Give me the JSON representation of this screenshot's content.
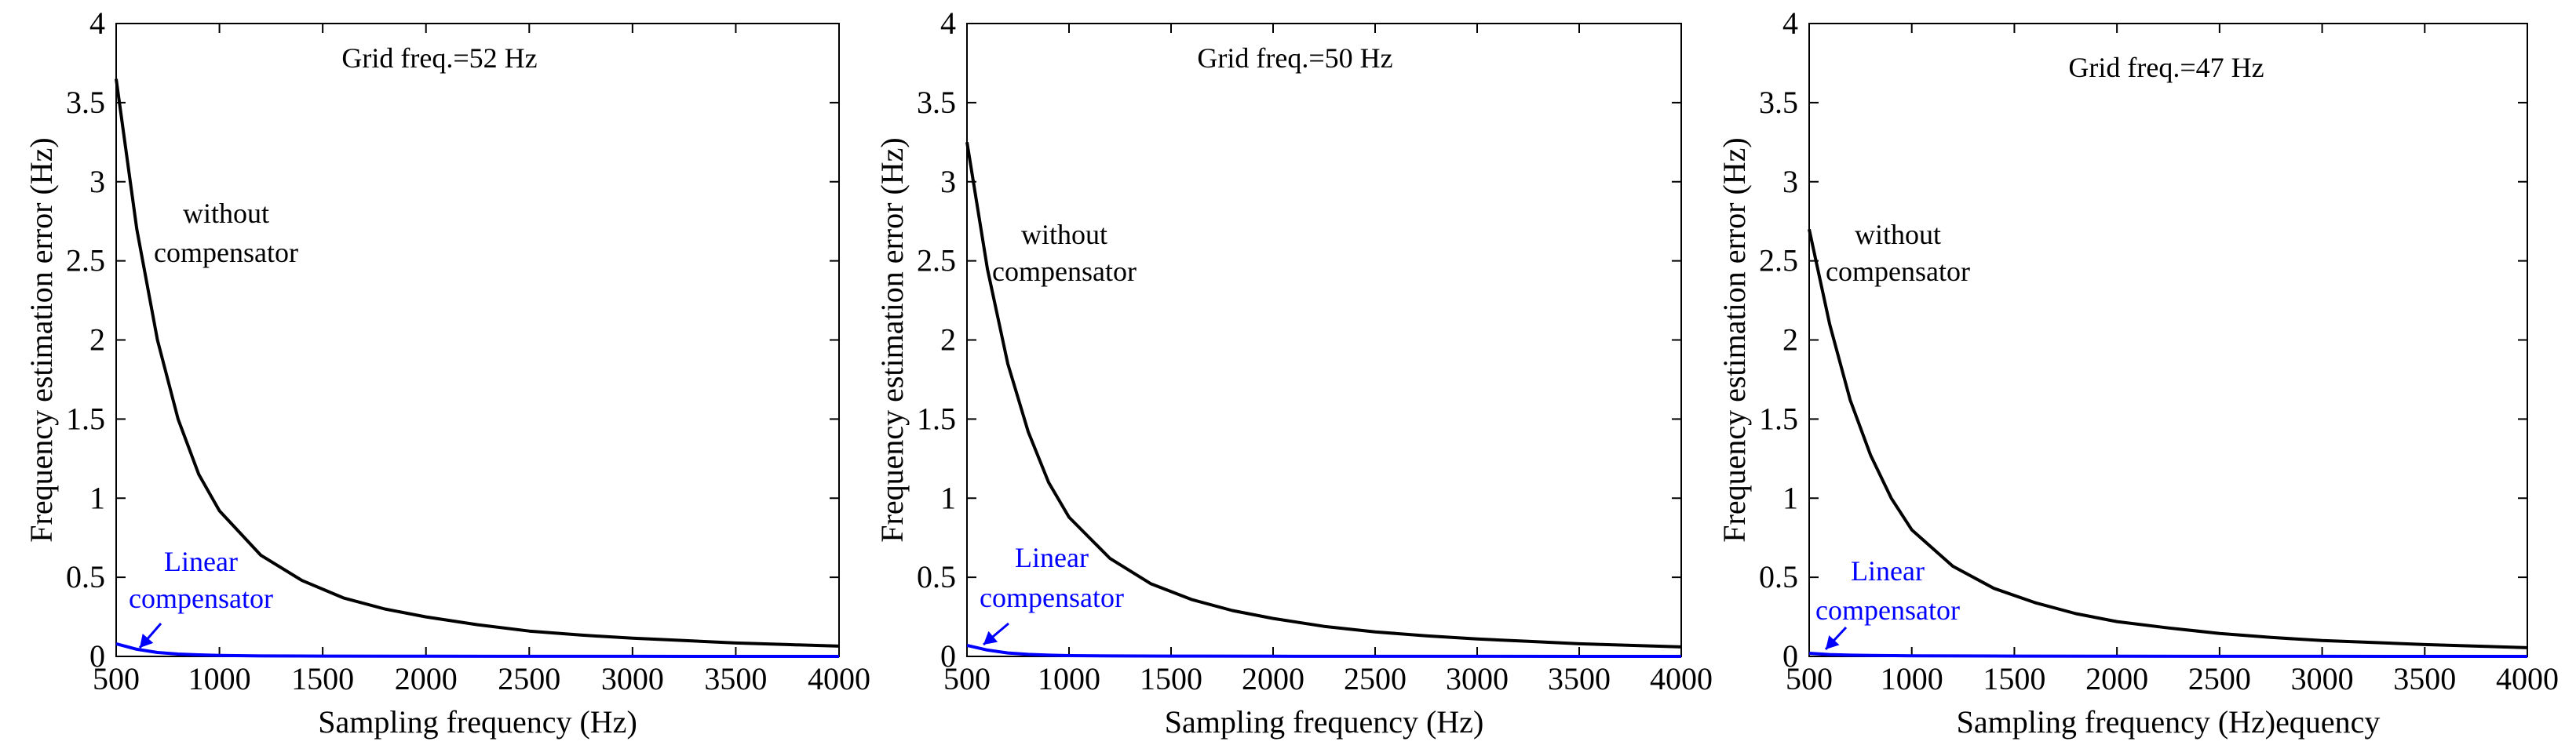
{
  "chart_data": [
    {
      "type": "line",
      "title": "Grid freq.=52 Hz",
      "xlabel": "Sampling frequency (Hz)",
      "ylabel": "Frequency estimation error (Hz)",
      "xlim": [
        500,
        4000
      ],
      "ylim": [
        0,
        4
      ],
      "xticks": [
        "500",
        "1000",
        "1500",
        "2000",
        "2500",
        "3000",
        "3500",
        "4000"
      ],
      "yticks": [
        "0",
        "0.5",
        "1",
        "1.5",
        "2",
        "2.5",
        "3",
        "3.5",
        "4"
      ],
      "annotations": {
        "without_line1": "without",
        "without_line2": "compensator",
        "linear_line1": "Linear",
        "linear_line2": "compensator"
      },
      "series": [
        {
          "name": "without compensator",
          "color": "#000000",
          "x": [
            500,
            600,
            700,
            800,
            900,
            1000,
            1200,
            1400,
            1600,
            1800,
            2000,
            2250,
            2500,
            2750,
            3000,
            3250,
            3500,
            3750,
            4000
          ],
          "values": [
            3.65,
            2.7,
            2.0,
            1.5,
            1.15,
            0.92,
            0.64,
            0.48,
            0.37,
            0.3,
            0.25,
            0.2,
            0.16,
            0.135,
            0.115,
            0.1,
            0.085,
            0.075,
            0.065
          ]
        },
        {
          "name": "Linear compensator",
          "color": "#0000ff",
          "x": [
            500,
            600,
            700,
            800,
            900,
            1000,
            1200,
            1500,
            2000,
            2500,
            3000,
            3500,
            4000
          ],
          "values": [
            0.08,
            0.045,
            0.025,
            0.015,
            0.01,
            0.006,
            0.003,
            0.002,
            0.001,
            0.0005,
            0.0003,
            0.0002,
            0.0001
          ]
        }
      ]
    },
    {
      "type": "line",
      "title": "Grid freq.=50 Hz",
      "xlabel": "Sampling frequency (Hz)",
      "ylabel": "Frequency estimation error (Hz)",
      "xlim": [
        500,
        4000
      ],
      "ylim": [
        0,
        4
      ],
      "xticks": [
        "500",
        "1000",
        "1500",
        "2000",
        "2500",
        "3000",
        "3500",
        "4000"
      ],
      "yticks": [
        "0",
        "0.5",
        "1",
        "1.5",
        "2",
        "2.5",
        "3",
        "3.5",
        "4"
      ],
      "annotations": {
        "without_line1": "without",
        "without_line2": "compensator",
        "linear_line1": "Linear",
        "linear_line2": "compensator"
      },
      "series": [
        {
          "name": "without compensator",
          "color": "#000000",
          "x": [
            500,
            600,
            700,
            800,
            900,
            1000,
            1200,
            1400,
            1600,
            1800,
            2000,
            2250,
            2500,
            2750,
            3000,
            3250,
            3500,
            3750,
            4000
          ],
          "values": [
            3.25,
            2.45,
            1.85,
            1.42,
            1.1,
            0.88,
            0.62,
            0.46,
            0.36,
            0.29,
            0.24,
            0.19,
            0.155,
            0.13,
            0.11,
            0.095,
            0.08,
            0.07,
            0.06
          ]
        },
        {
          "name": "Linear compensator",
          "color": "#0000ff",
          "x": [
            500,
            600,
            700,
            800,
            900,
            1000,
            1200,
            1500,
            2000,
            2500,
            3000,
            3500,
            4000
          ],
          "values": [
            0.07,
            0.04,
            0.022,
            0.013,
            0.008,
            0.005,
            0.003,
            0.002,
            0.001,
            0.0005,
            0.0003,
            0.0002,
            0.0001
          ]
        }
      ]
    },
    {
      "type": "line",
      "title": "Grid freq.=47 Hz",
      "xlabel": "Sampling frequency (Hz)equency",
      "ylabel": "Frequency estimation error (Hz)",
      "xlim": [
        500,
        4000
      ],
      "ylim": [
        0,
        4
      ],
      "xticks": [
        "500",
        "1000",
        "1500",
        "2000",
        "2500",
        "3000",
        "3500",
        "4000"
      ],
      "yticks": [
        "0",
        "0.5",
        "1",
        "1.5",
        "2",
        "2.5",
        "3",
        "3.5",
        "4"
      ],
      "annotations": {
        "without_line1": "without",
        "without_line2": "compensator",
        "linear_line1": "Linear",
        "linear_line2": "compensator"
      },
      "series": [
        {
          "name": "without compensator",
          "color": "#000000",
          "x": [
            500,
            600,
            700,
            800,
            900,
            1000,
            1200,
            1400,
            1600,
            1800,
            2000,
            2250,
            2500,
            2750,
            3000,
            3250,
            3500,
            3750,
            4000
          ],
          "values": [
            2.7,
            2.1,
            1.62,
            1.27,
            1.0,
            0.8,
            0.57,
            0.43,
            0.34,
            0.27,
            0.22,
            0.18,
            0.145,
            0.12,
            0.1,
            0.088,
            0.075,
            0.065,
            0.055
          ]
        },
        {
          "name": "Linear compensator",
          "color": "#0000ff",
          "x": [
            500,
            600,
            700,
            800,
            900,
            1000,
            1200,
            1500,
            2000,
            2500,
            3000,
            3500,
            4000
          ],
          "values": [
            0.02,
            0.012,
            0.008,
            0.006,
            0.005,
            0.004,
            0.003,
            0.002,
            0.001,
            0.0005,
            0.0003,
            0.0002,
            0.0001
          ]
        }
      ]
    }
  ]
}
